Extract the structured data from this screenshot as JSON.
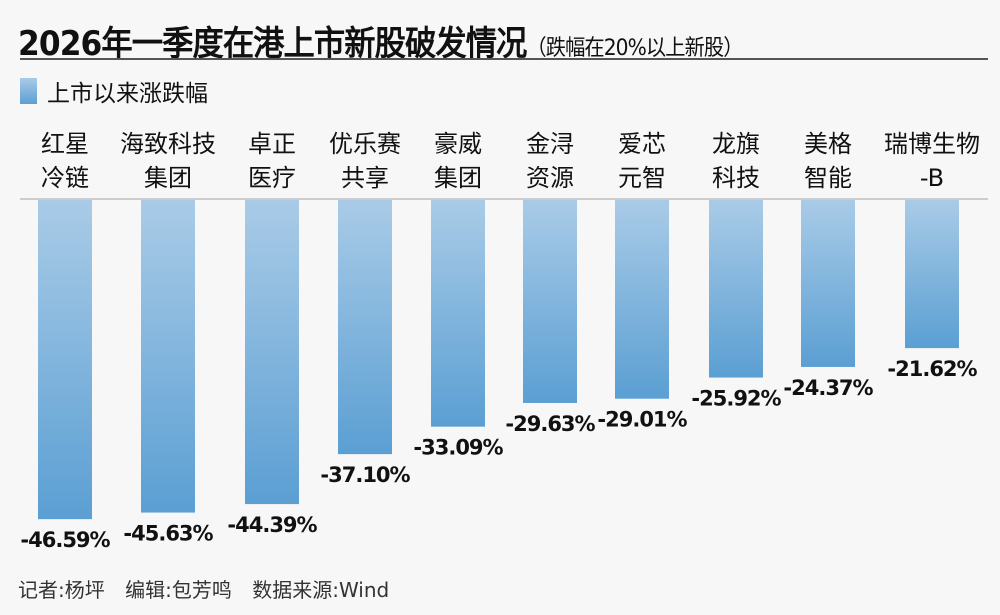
{
  "title": "2026年一季度在港上市新股破发情况",
  "subtitle": "（跌幅在20%以上新股）",
  "legend_label": "上市以来涨跌幅",
  "footer": {
    "reporter": "记者:杨坪",
    "editor": "编辑:包芳鸣",
    "source": "数据来源:Wind"
  },
  "colors": {
    "bar_top": "#a9cbe7",
    "bar_bottom": "#5b9fd3",
    "background": "#f7f7f7"
  },
  "chart_data": {
    "type": "bar",
    "title": "2026年一季度在港上市新股破发情况",
    "subtitle": "（跌幅在20%以上新股）",
    "categories": [
      [
        "红星",
        "冷链"
      ],
      [
        "海致科技",
        "集团"
      ],
      [
        "卓正",
        "医疗"
      ],
      [
        "优乐赛",
        "共享"
      ],
      [
        "豪威",
        "集团"
      ],
      [
        "金浔",
        "资源"
      ],
      [
        "爱芯",
        "元智"
      ],
      [
        "龙旗",
        "科技"
      ],
      [
        "美格",
        "智能"
      ],
      [
        "瑞博生物",
        "-B"
      ]
    ],
    "series": [
      {
        "name": "上市以来涨跌幅",
        "values": [
          -46.59,
          -45.63,
          -44.39,
          -37.1,
          -33.09,
          -29.63,
          -29.01,
          -25.92,
          -24.37,
          -21.62
        ]
      }
    ],
    "data_labels": [
      "-46.59%",
      "-45.63%",
      "-44.39%",
      "-37.10%",
      "-33.09%",
      "-29.63%",
      "-29.01%",
      "-25.92%",
      "-24.37%",
      "-21.62%"
    ],
    "legend": "top-left",
    "grid": false
  }
}
